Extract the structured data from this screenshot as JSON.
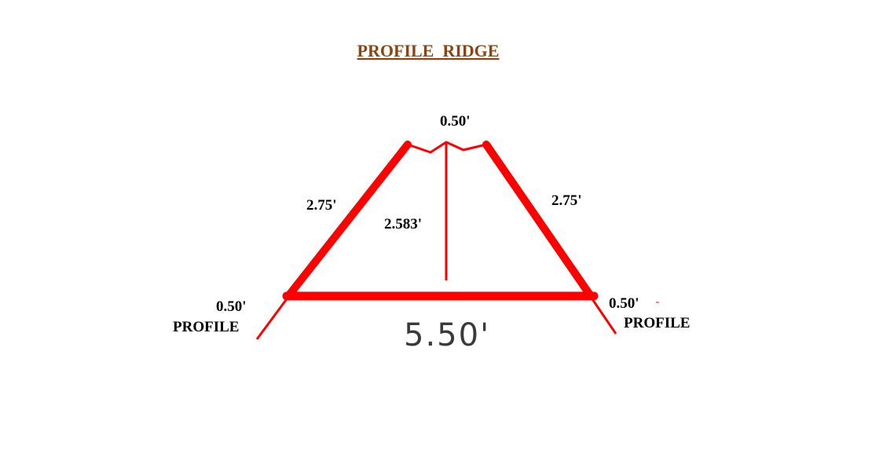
{
  "title": "PROFILE  RIDGE",
  "colors": {
    "title": "#8b4513",
    "line": "#ff0000",
    "text": "#000000"
  },
  "labels": {
    "top_width": "0.50'",
    "left_slope": "2.75'",
    "right_slope": "2.75'",
    "height": "2.583'",
    "bottom_width": "5.50'",
    "left_extension": "0.50'",
    "left_extension_name": "PROFILE",
    "right_extension": "0.50'",
    "right_extension_name": "PROFILE"
  }
}
